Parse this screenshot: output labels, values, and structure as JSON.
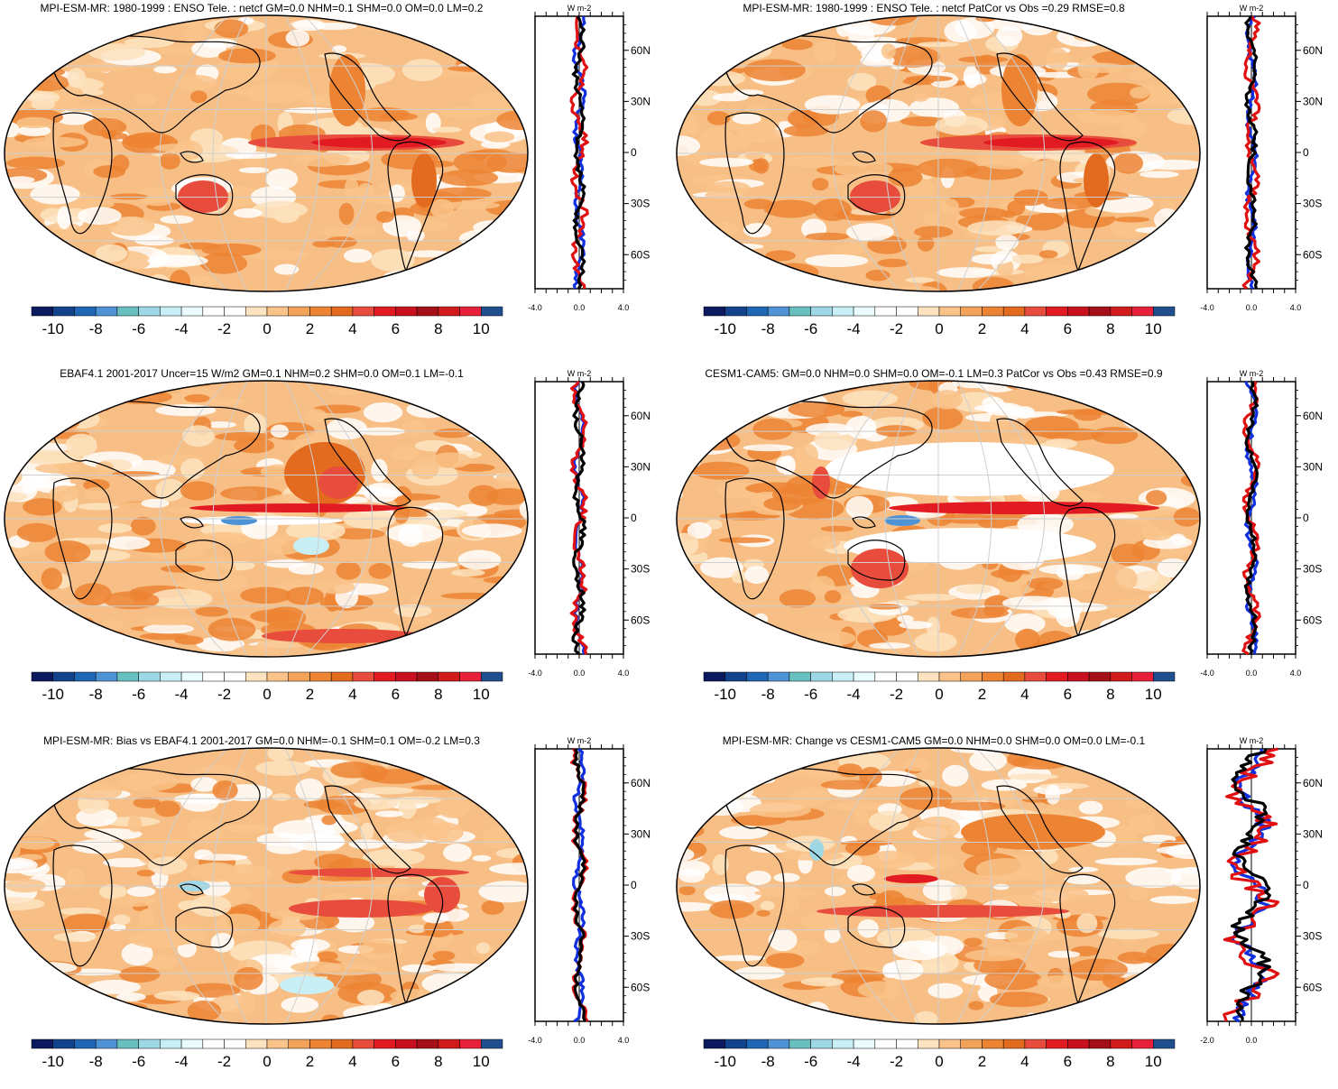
{
  "colorbar": {
    "colors": [
      "#0b1a5e",
      "#12428c",
      "#1f66b5",
      "#4e93d6",
      "#69c0c0",
      "#9ed8e6",
      "#c8eff6",
      "#eafcfe",
      "#ffffff",
      "#ffffff",
      "#fde3c0",
      "#f9c389",
      "#f3a259",
      "#ec8434",
      "#e36b1f",
      "#e84c3c",
      "#e21b23",
      "#c8101f",
      "#a50f18",
      "#d11a1a",
      "#e8203a",
      "#1f4f8f"
    ],
    "labels": [
      "-10",
      "-8",
      "-6",
      "-4",
      "-2",
      "0",
      "2",
      "4",
      "6",
      "8",
      "10"
    ]
  },
  "profile_axis": {
    "unit_label": "W m-2",
    "lat_ticks": [
      "60N",
      "30N",
      "0",
      "30S",
      "60S"
    ]
  },
  "series_colors": {
    "model": "#e01010",
    "obs": "#1030e0",
    "diff": "#000000"
  },
  "panels": [
    {
      "title": "MPI-ESM-MR: 1980-1999 : ENSO Tele. : netcf GM=0.0 NHM=0.1 SHM=0.0 OM=0.0 LM=0.2",
      "x_ticks": [
        "-4.0",
        "0.0",
        "4.0"
      ],
      "x_range": [
        -4,
        4
      ],
      "map_pattern": "enso_model"
    },
    {
      "title": "MPI-ESM-MR: 1980-1999 : ENSO Tele. : netcf PatCor vs Obs =0.29 RMSE=0.8",
      "x_ticks": [
        "-4.0",
        "0.0",
        "4.0"
      ],
      "x_range": [
        -4,
        4
      ],
      "map_pattern": "enso_model"
    },
    {
      "title": "EBAF4.1 2001-2017 Uncer=15 W/m2 GM=0.1 NHM=0.2 SHM=0.0 OM=0.1 LM=-0.1",
      "x_ticks": [
        "-4.0",
        "0.0",
        "4.0"
      ],
      "x_range": [
        -4,
        4
      ],
      "map_pattern": "obs"
    },
    {
      "title": "CESM1-CAM5: GM=0.0 NHM=0.0 SHM=0.0 OM=-0.1 LM=0.3 PatCor vs Obs =0.43 RMSE=0.9",
      "x_ticks": [
        "-4.0",
        "0.0",
        "4.0"
      ],
      "x_range": [
        -4,
        4
      ],
      "map_pattern": "cesm"
    },
    {
      "title": "MPI-ESM-MR: Bias vs EBAF4.1 2001-2017 GM=0.0 NHM=-0.1 SHM=0.1 OM=-0.2 LM=0.3",
      "x_ticks": [
        "-4.0",
        "0.0",
        "4.0"
      ],
      "x_range": [
        -4,
        4
      ],
      "map_pattern": "bias"
    },
    {
      "title": "MPI-ESM-MR: Change vs CESM1-CAM5 GM=0.0 NHM=0.0 SHM=0.0 OM=0.0 LM=-0.1",
      "x_ticks": [
        "-2.0",
        "0.0"
      ],
      "x_range": [
        -2,
        2
      ],
      "map_pattern": "change"
    }
  ]
}
